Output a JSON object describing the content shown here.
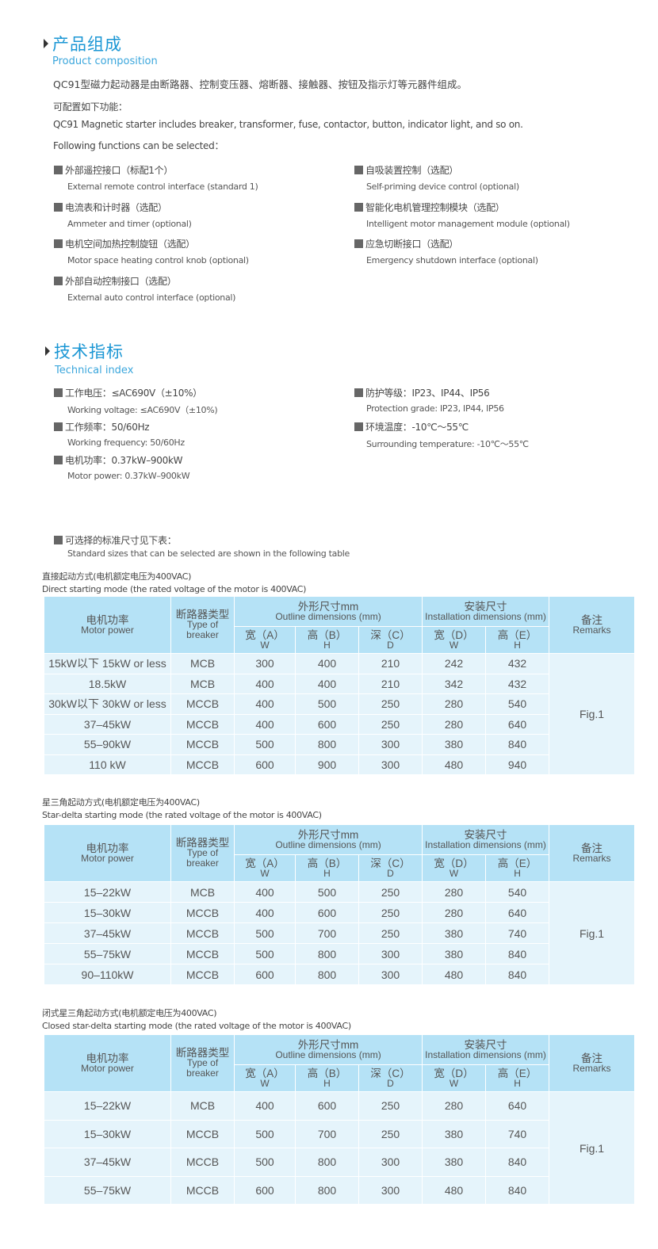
{
  "composition": {
    "title": "产品组成",
    "subtitle": "Product composition",
    "intro_zh": "QC91型磁力起动器是由断路器、控制变压器、熔断器、接触器、按钮及指示灯等元器件组成。",
    "config_zh": "可配置如下功能：",
    "intro_en": "QC91 Magnetic starter includes breaker, transformer, fuse, contactor, button, indicator light, and so on.",
    "config_en": "Following functions can be selected：",
    "features_left": [
      {
        "zh": "外部遥控接口（标配1个）",
        "en": "External remote control interface (standard 1)"
      },
      {
        "zh": "电流表和计时器（选配）",
        "en": "Ammeter and timer (optional)"
      },
      {
        "zh": "电机空间加热控制旋钮（选配）",
        "en": "Motor space heating control knob (optional)"
      },
      {
        "zh": "外部自动控制接口（选配）",
        "en": "External auto control interface (optional)"
      }
    ],
    "features_right": [
      {
        "zh": "自吸装置控制（选配）",
        "en": "Self-priming device control (optional)"
      },
      {
        "zh": "智能化电机管理控制模块（选配）",
        "en": "Intelligent motor management module (optional)"
      },
      {
        "zh": "应急切断接口（选配）",
        "en": "Emergency shutdown interface (optional)"
      }
    ]
  },
  "technical": {
    "title": "技术指标",
    "subtitle": "Technical index",
    "specs_left": [
      {
        "zh": "工作电压：≤AC690V（±10%）",
        "en": "Working voltage: ≤AC690V（±10%)"
      },
      {
        "zh": "工作频率：50/60Hz",
        "en": "Working frequency: 50/60Hz"
      },
      {
        "zh": "电机功率：0.37kW–900kW",
        "en": "Motor power: 0.37kW–900kW"
      }
    ],
    "specs_right": [
      {
        "zh": "防护等级：IP23、IP44、IP56",
        "en": "Protection grade: IP23, IP44, IP56"
      },
      {
        "zh": "环境温度：-10℃～55℃",
        "en": "Surrounding temperature: -10℃～55℃"
      }
    ],
    "note_zh": "可选择的标准尺寸见下表：",
    "note_en": "Standard sizes that can be selected are shown in the following table"
  },
  "table_header": {
    "motor_power_zh": "电机功率",
    "motor_power_en": "Motor power",
    "breaker_zh": "断路器类型",
    "breaker_en": "Type of breaker",
    "outline_zh": "外形尺寸mm",
    "outline_en": "Outline dimensions (mm)",
    "install_zh": "安装尺寸",
    "install_en": "Installation dimensions (mm)",
    "remarks_zh": "备注",
    "remarks_en": "Remarks",
    "sub": [
      {
        "zh": "宽（A）",
        "en": "W"
      },
      {
        "zh": "高（B）",
        "en": "H"
      },
      {
        "zh": "深（C）",
        "en": "D"
      },
      {
        "zh": "宽（D）",
        "en": "W"
      },
      {
        "zh": "高（E）",
        "en": "H"
      }
    ]
  },
  "tables": [
    {
      "caption_zh": "直接起动方式(电机额定电压为400VAC)",
      "caption_en": "Direct starting mode (the rated voltage of the motor is 400VAC)",
      "remark": "Fig.1",
      "rows": [
        [
          "15kW以下 15kW or less",
          "MCB",
          "300",
          "400",
          "210",
          "242",
          "432"
        ],
        [
          "18.5kW",
          "MCB",
          "400",
          "400",
          "210",
          "342",
          "432"
        ],
        [
          "30kW以下 30kW or less",
          "MCCB",
          "400",
          "500",
          "250",
          "280",
          "540"
        ],
        [
          "37–45kW",
          "MCCB",
          "400",
          "600",
          "250",
          "280",
          "640"
        ],
        [
          "55–90kW",
          "MCCB",
          "500",
          "800",
          "300",
          "380",
          "840"
        ],
        [
          "110 kW",
          "MCCB",
          "600",
          "900",
          "300",
          "480",
          "940"
        ]
      ]
    },
    {
      "caption_zh": "星三角起动方式(电机额定电压为400VAC)",
      "caption_en": "Star-delta starting mode (the rated voltage of the motor is 400VAC)",
      "remark": "Fig.1",
      "rows": [
        [
          "15–22kW",
          "MCB",
          "400",
          "500",
          "250",
          "280",
          "540"
        ],
        [
          "15–30kW",
          "MCCB",
          "400",
          "600",
          "250",
          "280",
          "640"
        ],
        [
          "37–45kW",
          "MCCB",
          "500",
          "700",
          "250",
          "380",
          "740"
        ],
        [
          "55–75kW",
          "MCCB",
          "500",
          "800",
          "300",
          "380",
          "840"
        ],
        [
          "90–110kW",
          "MCCB",
          "600",
          "800",
          "300",
          "480",
          "840"
        ]
      ]
    },
    {
      "caption_zh": "闭式星三角起动方式(电机额定电压为400VAC)",
      "caption_en": "Closed star-delta starting mode (the rated voltage of the motor is 400VAC)",
      "remark": "Fig.1",
      "rows": [
        [
          "15–22kW",
          "MCB",
          "400",
          "600",
          "250",
          "280",
          "640"
        ],
        [
          "15–30kW",
          "MCCB",
          "500",
          "700",
          "250",
          "380",
          "740"
        ],
        [
          "37–45kW",
          "MCCB",
          "500",
          "800",
          "300",
          "380",
          "840"
        ],
        [
          "55–75kW",
          "MCCB",
          "600",
          "800",
          "300",
          "480",
          "840"
        ]
      ]
    }
  ]
}
